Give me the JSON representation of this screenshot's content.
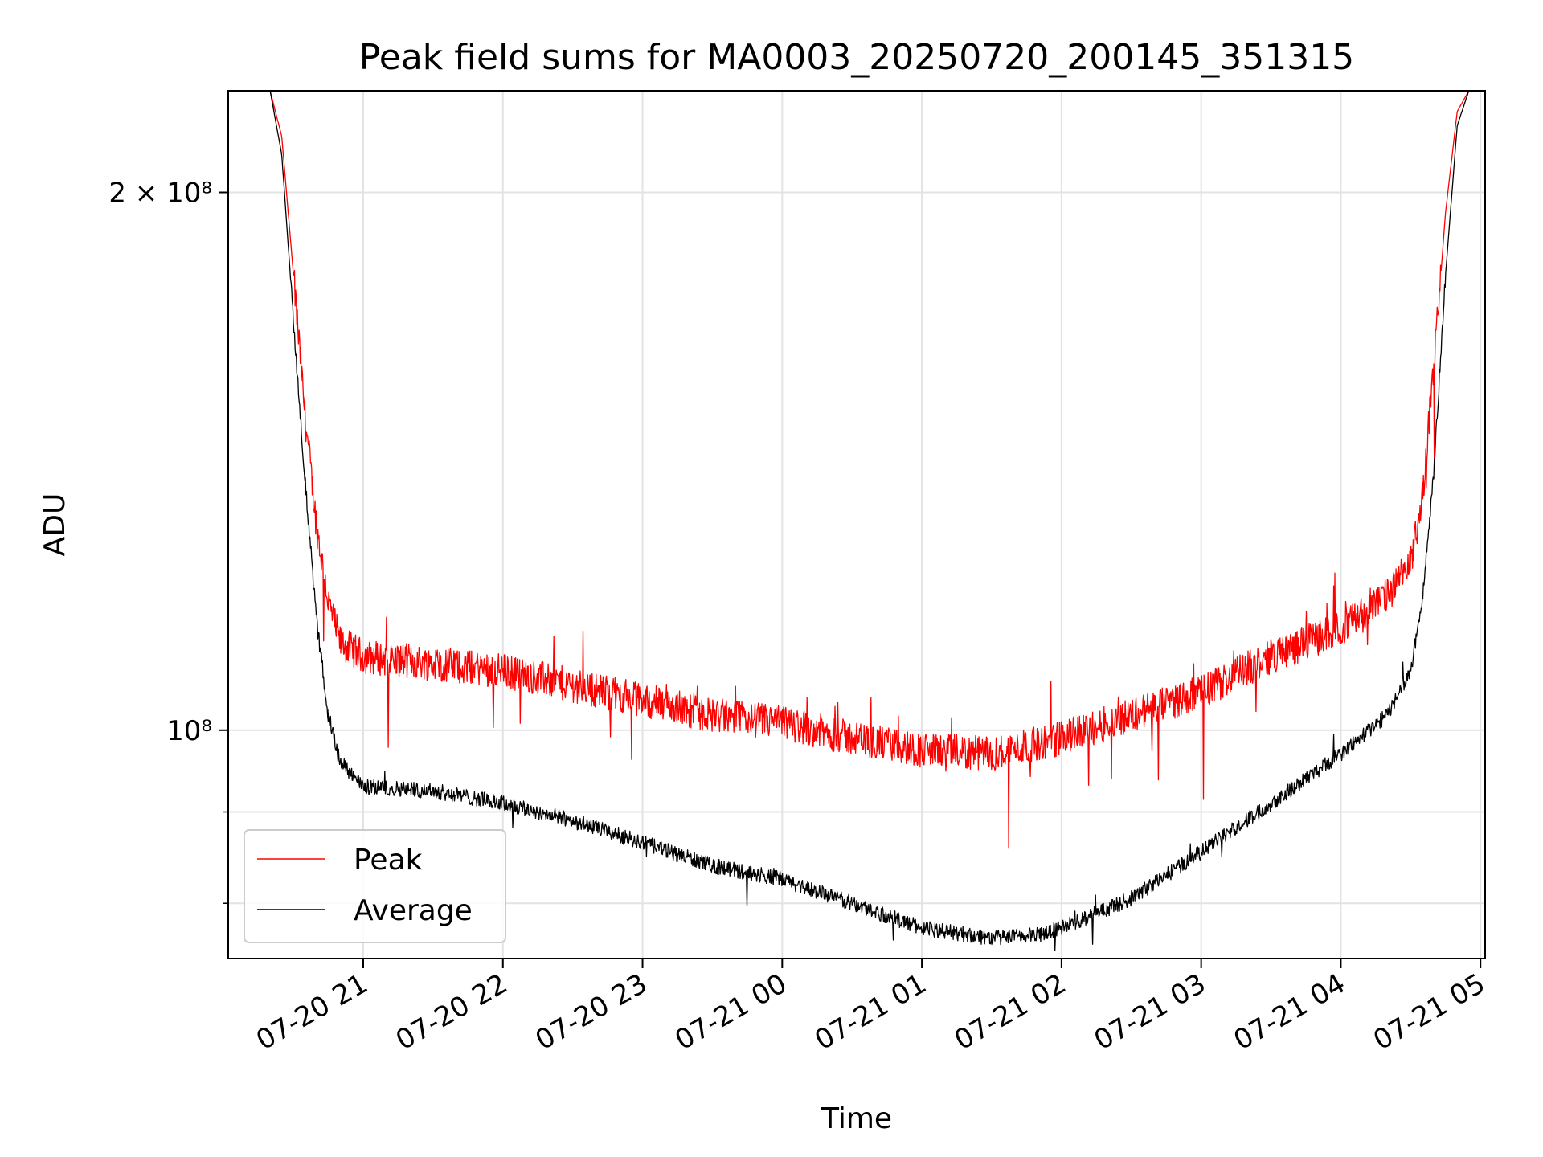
{
  "chart_data": {
    "type": "line",
    "title": "Peak field sums for MA0003_20250720_200145_351315",
    "xlabel": "Time",
    "ylabel": "ADU",
    "y_scale": "log",
    "grid": true,
    "legend_position": "lower-left",
    "x_range": [
      "2025-07-20 20:02",
      "2025-07-21 05:02"
    ],
    "y_range": [
      74500000,
      228000000
    ],
    "x_ticks": [
      "07-20 21",
      "07-20 22",
      "07-20 23",
      "07-21 00",
      "07-21 01",
      "07-21 02",
      "07-21 03",
      "07-21 04",
      "07-21 05"
    ],
    "y_ticks": [
      {
        "label": "2 × 10⁸",
        "value": 200000000
      },
      {
        "label": "10⁸",
        "value": 100000000
      }
    ],
    "y_minor_ticks": [
      90000000,
      80000000
    ],
    "series": [
      {
        "name": "Peak",
        "color": "#ff0000",
        "points": [
          [
            "2025-07-20 20:02",
            228000000
          ],
          [
            "2025-07-20 20:20",
            228000000
          ],
          [
            "2025-07-20 20:25",
            215000000
          ],
          [
            "2025-07-20 20:30",
            180000000
          ],
          [
            "2025-07-20 20:35",
            150000000
          ],
          [
            "2025-07-20 20:40",
            130000000
          ],
          [
            "2025-07-20 20:45",
            118000000
          ],
          [
            "2025-07-20 20:50",
            112000000
          ],
          [
            "2025-07-20 21:00",
            110000000
          ],
          [
            "2025-07-20 21:30",
            109000000
          ],
          [
            "2025-07-20 22:00",
            108000000
          ],
          [
            "2025-07-20 22:30",
            106000000
          ],
          [
            "2025-07-20 23:00",
            104000000
          ],
          [
            "2025-07-20 23:30",
            102000000
          ],
          [
            "2025-07-21 00:00",
            101000000
          ],
          [
            "2025-07-21 00:30",
            99000000
          ],
          [
            "2025-07-21 01:00",
            97500000
          ],
          [
            "2025-07-21 01:30",
            97000000
          ],
          [
            "2025-07-21 02:00",
            99000000
          ],
          [
            "2025-07-21 02:30",
            102000000
          ],
          [
            "2025-07-21 03:00",
            105000000
          ],
          [
            "2025-07-21 03:30",
            110000000
          ],
          [
            "2025-07-21 04:00",
            114000000
          ],
          [
            "2025-07-21 04:20",
            119000000
          ],
          [
            "2025-07-21 04:30",
            124000000
          ],
          [
            "2025-07-21 04:35",
            135000000
          ],
          [
            "2025-07-21 04:40",
            160000000
          ],
          [
            "2025-07-21 04:45",
            195000000
          ],
          [
            "2025-07-21 04:50",
            222000000
          ],
          [
            "2025-07-21 04:55",
            228000000
          ],
          [
            "2025-07-21 05:02",
            228000000
          ]
        ]
      },
      {
        "name": "Average",
        "color": "#000000",
        "points": [
          [
            "2025-07-20 20:02",
            228000000
          ],
          [
            "2025-07-20 20:20",
            228000000
          ],
          [
            "2025-07-20 20:25",
            210000000
          ],
          [
            "2025-07-20 20:30",
            170000000
          ],
          [
            "2025-07-20 20:35",
            138000000
          ],
          [
            "2025-07-20 20:40",
            115000000
          ],
          [
            "2025-07-20 20:45",
            102000000
          ],
          [
            "2025-07-20 20:50",
            96000000
          ],
          [
            "2025-07-20 21:00",
            93000000
          ],
          [
            "2025-07-20 21:30",
            92500000
          ],
          [
            "2025-07-20 22:00",
            91000000
          ],
          [
            "2025-07-20 22:30",
            89000000
          ],
          [
            "2025-07-20 23:00",
            86500000
          ],
          [
            "2025-07-20 23:30",
            84000000
          ],
          [
            "2025-07-21 00:00",
            82500000
          ],
          [
            "2025-07-21 00:30",
            80000000
          ],
          [
            "2025-07-21 01:00",
            77500000
          ],
          [
            "2025-07-21 01:30",
            76500000
          ],
          [
            "2025-07-21 01:50",
            76800000
          ],
          [
            "2025-07-21 02:00",
            77500000
          ],
          [
            "2025-07-21 02:30",
            80500000
          ],
          [
            "2025-07-21 03:00",
            85500000
          ],
          [
            "2025-07-21 03:30",
            91000000
          ],
          [
            "2025-07-21 04:00",
            97000000
          ],
          [
            "2025-07-21 04:20",
            102000000
          ],
          [
            "2025-07-21 04:30",
            108000000
          ],
          [
            "2025-07-21 04:35",
            118000000
          ],
          [
            "2025-07-21 04:40",
            140000000
          ],
          [
            "2025-07-21 04:45",
            180000000
          ],
          [
            "2025-07-21 04:50",
            218000000
          ],
          [
            "2025-07-21 04:55",
            228000000
          ],
          [
            "2025-07-21 05:02",
            228000000
          ]
        ]
      }
    ]
  }
}
